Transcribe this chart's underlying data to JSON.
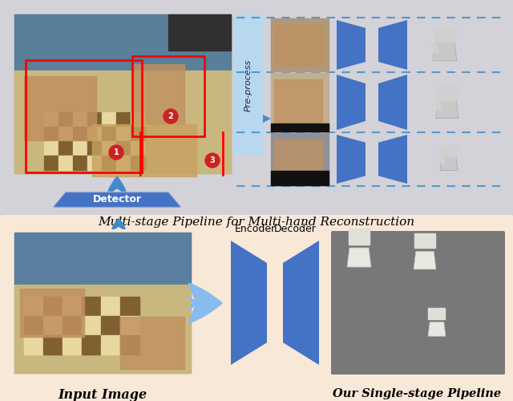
{
  "fig_width": 6.4,
  "fig_height": 5.0,
  "dpi": 100,
  "bg_color": "#ffffff",
  "top_panel_bg": "#d2d2d8",
  "bottom_panel_bg": "#f8e8d8",
  "blue_color": "#4472c4",
  "light_blue": "#88bbee",
  "arrow_blue": "#4488cc",
  "pre_process_bg": "#b8d8f0",
  "dashed_color": "#5599cc",
  "top_title": "Multi-stage Pipeline for Multi-hand Reconstruction",
  "bottom_left_label": "Input Image",
  "bottom_right_label": "Our Single-stage Pipeline",
  "detector_label": "Detector",
  "encoder_label": "Encoder",
  "decoder_label": "Decoder",
  "pre_process_label": "Pre-process"
}
